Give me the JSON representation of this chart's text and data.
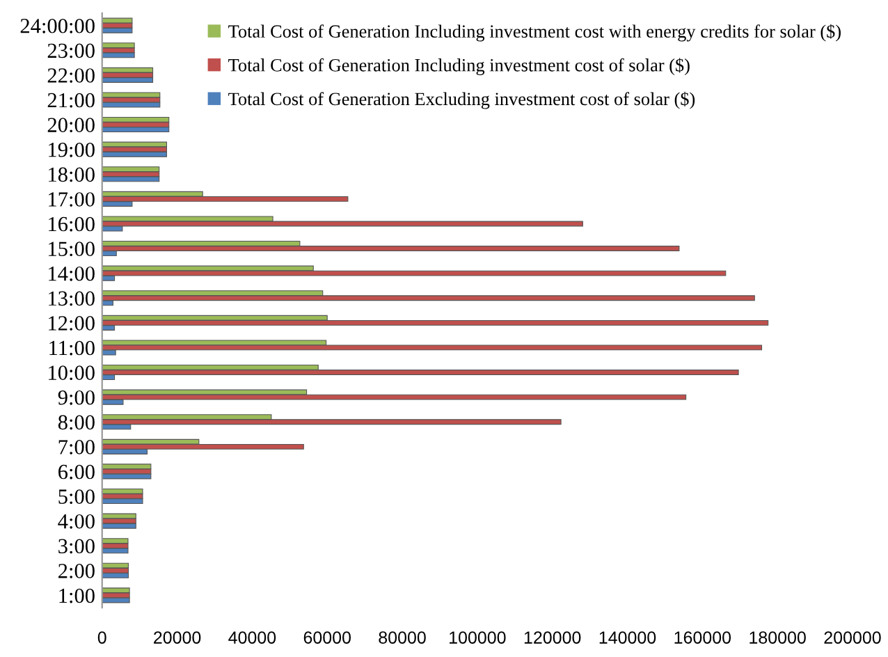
{
  "chart_data": {
    "type": "bar",
    "orientation": "horizontal",
    "categories": [
      "24:00:00",
      "23:00",
      "22:00",
      "21:00",
      "20:00",
      "19:00",
      "18:00",
      "17:00",
      "16:00",
      "15:00",
      "14:00",
      "13:00",
      "12:00",
      "11:00",
      "10:00",
      "9:00",
      "8:00",
      "7:00",
      "6:00",
      "5:00",
      "4:00",
      "3:00",
      "2:00",
      "1:00"
    ],
    "series": [
      {
        "name": "Total Cost of Generation Including investment cost with energy credits for solar ($)",
        "color": "#9bbb59",
        "values": [
          8000,
          8600,
          13500,
          15400,
          17800,
          17200,
          15200,
          26800,
          45500,
          52700,
          56300,
          58800,
          60000,
          59700,
          57600,
          54500,
          45100,
          25800,
          13000,
          10800,
          9000,
          6900,
          7000,
          7300
        ]
      },
      {
        "name": "Total Cost of Generation Including investment cost of solar ($)",
        "color": "#c0504d",
        "values": [
          8000,
          8600,
          13500,
          15400,
          17800,
          17200,
          15200,
          65500,
          128100,
          153800,
          166200,
          173900,
          177500,
          175800,
          169600,
          155600,
          122300,
          53700,
          13000,
          10800,
          9000,
          6900,
          7000,
          7300
        ]
      },
      {
        "name": "Total Cost of Generation Excluding investment cost of solar ($)",
        "color": "#4f81bd",
        "values": [
          8000,
          8600,
          13500,
          15400,
          17800,
          17200,
          15200,
          8000,
          5400,
          3800,
          3300,
          2900,
          3300,
          3600,
          3300,
          5600,
          7600,
          12000,
          13000,
          10800,
          9000,
          6900,
          7000,
          7300
        ]
      }
    ],
    "xlim": [
      0,
      200000
    ],
    "xticks": [
      0,
      20000,
      40000,
      60000,
      80000,
      100000,
      120000,
      140000,
      160000,
      180000,
      200000
    ],
    "grid": false,
    "legend": "top right"
  }
}
